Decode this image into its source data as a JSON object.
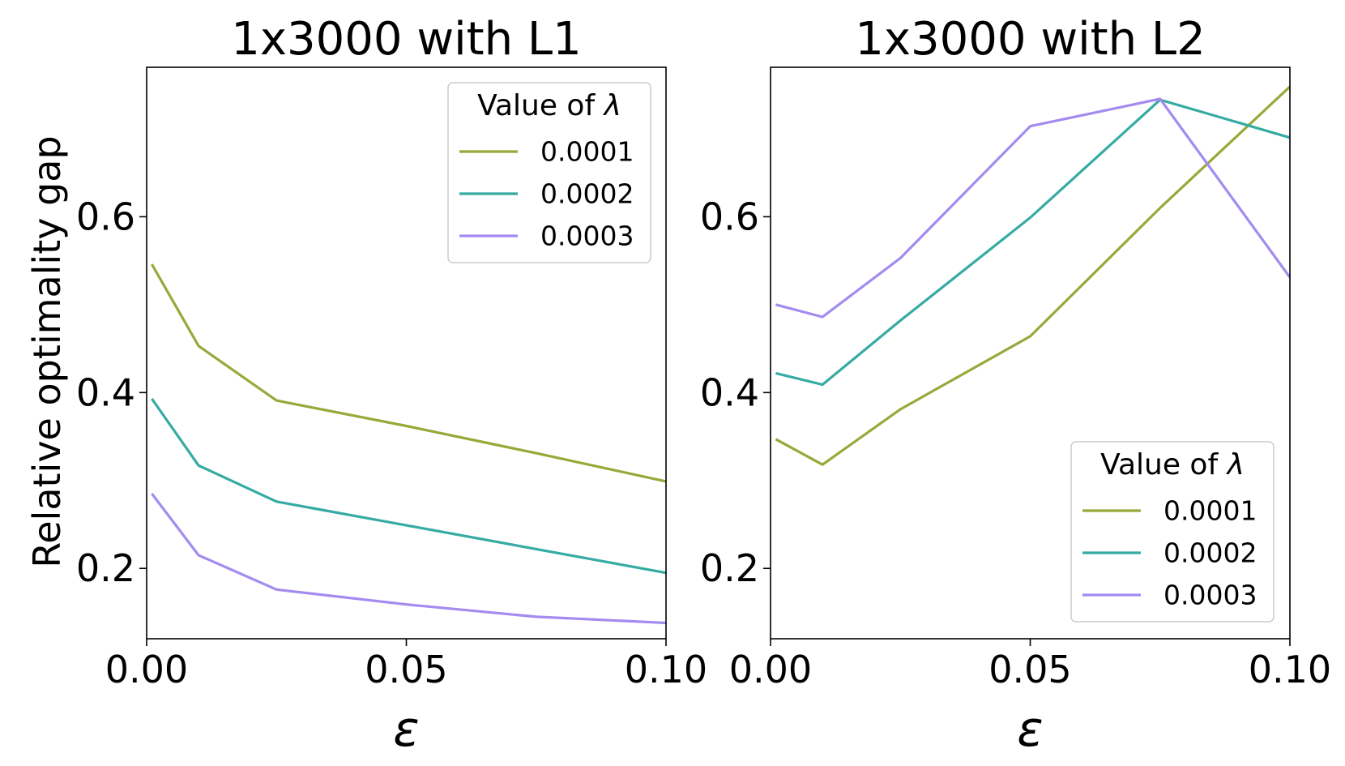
{
  "figure": {
    "ylabel": "Relative optimality gap"
  },
  "chart_data": [
    {
      "type": "line",
      "title": "1x3000 with L1",
      "xlabel": "ε",
      "ylabel": "Relative optimality gap",
      "xlim": [
        0.0,
        0.1
      ],
      "ylim": [
        0.12,
        0.77
      ],
      "xticks": [
        0.0,
        0.05,
        0.1
      ],
      "xtick_labels": [
        "0.00",
        "0.05",
        "0.10"
      ],
      "yticks": [
        0.2,
        0.4,
        0.6
      ],
      "ytick_labels": [
        "0.2",
        "0.4",
        "0.6"
      ],
      "legend": {
        "title_text": "Value of ",
        "title_symbol": "λ",
        "position": "top-right"
      },
      "series": [
        {
          "name": "0.0001",
          "color": "#99a83a",
          "x": [
            0.001,
            0.01,
            0.025,
            0.05,
            0.075,
            0.1
          ],
          "y": [
            0.546,
            0.453,
            0.391,
            0.362,
            0.331,
            0.299
          ]
        },
        {
          "name": "0.0002",
          "color": "#35aba3",
          "x": [
            0.001,
            0.01,
            0.025,
            0.05,
            0.075,
            0.1
          ],
          "y": [
            0.393,
            0.317,
            0.276,
            0.249,
            0.222,
            0.195
          ]
        },
        {
          "name": "0.0003",
          "color": "#a38bf0",
          "x": [
            0.001,
            0.01,
            0.025,
            0.05,
            0.075,
            0.1
          ],
          "y": [
            0.285,
            0.215,
            0.176,
            0.159,
            0.145,
            0.138
          ]
        }
      ]
    },
    {
      "type": "line",
      "title": "1x3000 with L2",
      "xlabel": "ε",
      "ylabel": "",
      "xlim": [
        0.0,
        0.1
      ],
      "ylim": [
        0.12,
        0.77
      ],
      "xticks": [
        0.0,
        0.05,
        0.1
      ],
      "xtick_labels": [
        "0.00",
        "0.05",
        "0.10"
      ],
      "yticks": [
        0.2,
        0.4,
        0.6
      ],
      "ytick_labels": [
        "0.2",
        "0.4",
        "0.6"
      ],
      "legend": {
        "title_text": "Value of ",
        "title_symbol": "λ",
        "position": "bottom-right"
      },
      "series": [
        {
          "name": "0.0001",
          "color": "#99a83a",
          "x": [
            0.001,
            0.01,
            0.025,
            0.05,
            0.075,
            0.1
          ],
          "y": [
            0.347,
            0.318,
            0.381,
            0.464,
            0.61,
            0.748
          ]
        },
        {
          "name": "0.0002",
          "color": "#35aba3",
          "x": [
            0.001,
            0.01,
            0.025,
            0.05,
            0.075,
            0.1
          ],
          "y": [
            0.422,
            0.409,
            0.482,
            0.599,
            0.733,
            0.69
          ]
        },
        {
          "name": "0.0003",
          "color": "#a38bf0",
          "x": [
            0.001,
            0.01,
            0.025,
            0.05,
            0.075,
            0.1
          ],
          "y": [
            0.5,
            0.486,
            0.553,
            0.703,
            0.734,
            0.531
          ]
        }
      ]
    }
  ]
}
